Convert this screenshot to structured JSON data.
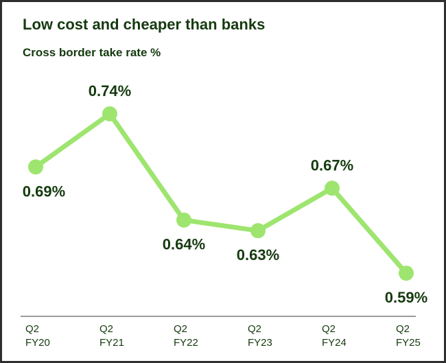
{
  "header": {
    "title": "Low cost and cheaper than banks",
    "subtitle": "Cross border take rate %"
  },
  "colors": {
    "line": "#9ee56f",
    "text": "#153a0f",
    "axis": "#3a3a3a"
  },
  "chart_data": {
    "type": "line",
    "title": "Low cost and cheaper than banks",
    "subtitle": "Cross border take rate %",
    "categories": [
      [
        "Q2",
        "FY20"
      ],
      [
        "Q2",
        "FY21"
      ],
      [
        "Q2",
        "FY22"
      ],
      [
        "Q2",
        "FY23"
      ],
      [
        "Q2",
        "FY24"
      ],
      [
        "Q2",
        "FY25"
      ]
    ],
    "values": [
      0.69,
      0.74,
      0.64,
      0.63,
      0.67,
      0.59
    ],
    "data_labels": [
      "0.69%",
      "0.74%",
      "0.64%",
      "0.63%",
      "0.67%",
      "0.59%"
    ],
    "label_position": [
      "below",
      "above",
      "below",
      "below",
      "above",
      "below"
    ],
    "ylim": [
      0.56,
      0.77
    ],
    "grid": false,
    "legend": "none"
  }
}
